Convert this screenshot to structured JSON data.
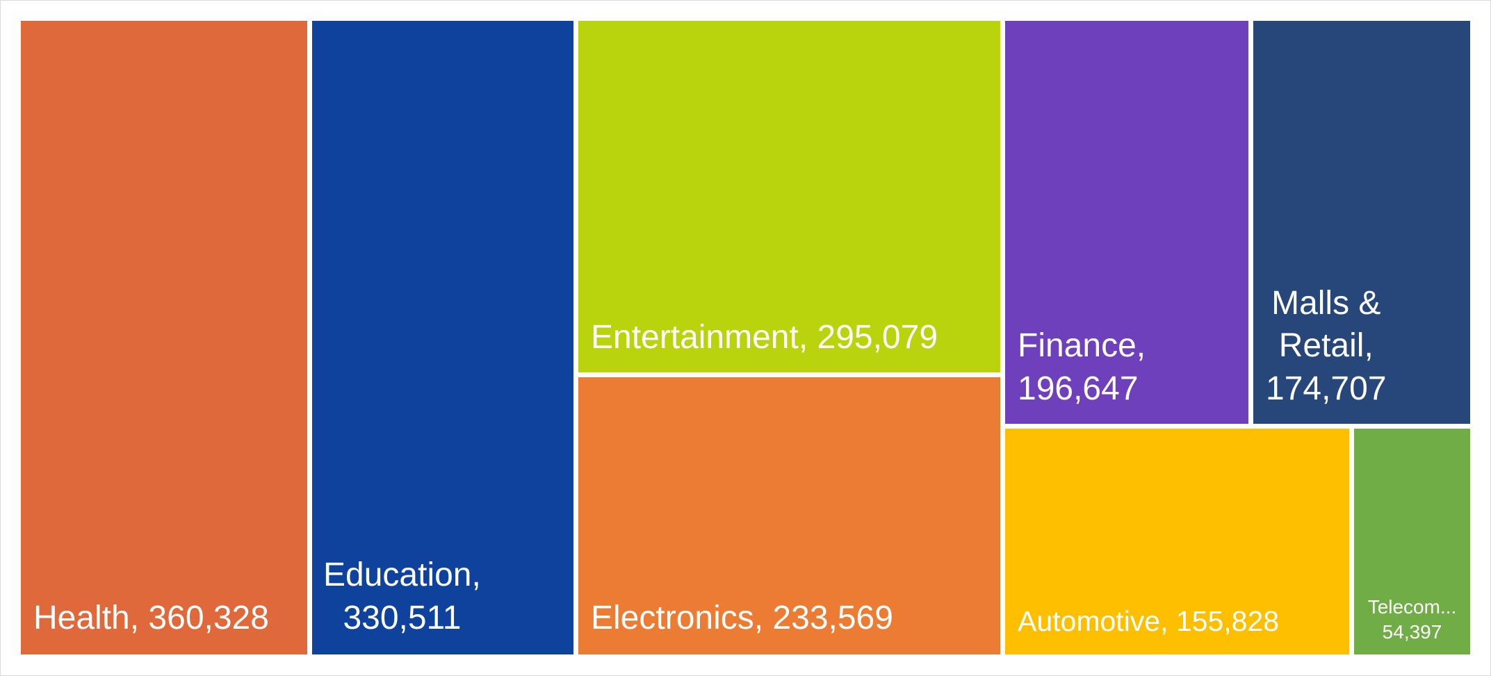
{
  "chart_data": {
    "type": "treemap",
    "title": "",
    "items": [
      {
        "label": "Health",
        "value": 360328,
        "value_text": "360,328",
        "color": "#E0693C"
      },
      {
        "label": "Education",
        "value": 330511,
        "value_text": "330,511",
        "color": "#0E429D"
      },
      {
        "label": "Entertainment",
        "value": 295079,
        "value_text": "295,079",
        "color": "#B9D40C"
      },
      {
        "label": "Electronics",
        "value": 233569,
        "value_text": "233,569",
        "color": "#EC7C33"
      },
      {
        "label": "Finance",
        "value": 196647,
        "value_text": "196,647",
        "color": "#6F40BC"
      },
      {
        "label": "Malls & Retail",
        "value": 174707,
        "value_text": "174,707",
        "color": "#27467A"
      },
      {
        "label": "Automotive",
        "value": 155828,
        "value_text": "155,828",
        "color": "#FDBF00"
      },
      {
        "label": "Telecom...",
        "value": 54397,
        "value_text": "54,397",
        "color": "#70AD47"
      }
    ]
  }
}
